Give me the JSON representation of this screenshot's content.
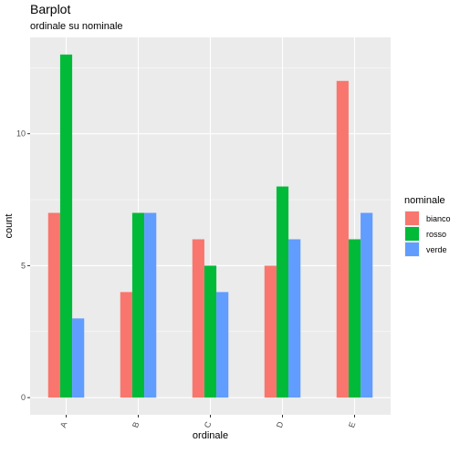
{
  "chart_data": {
    "type": "bar",
    "title": "Barplot",
    "subtitle": "ordinale su nominale",
    "xlabel": "ordinale",
    "ylabel": "count",
    "categories": [
      "A",
      "B",
      "C",
      "D",
      "E"
    ],
    "series": [
      {
        "name": "bianco",
        "color": "#F8766D",
        "values": [
          7,
          4,
          6,
          5,
          12
        ]
      },
      {
        "name": "rosso",
        "color": "#00BA38",
        "values": [
          13,
          7,
          5,
          8,
          6
        ]
      },
      {
        "name": "verde",
        "color": "#619CFF",
        "values": [
          3,
          7,
          4,
          6,
          7
        ]
      }
    ],
    "ylim": [
      -0.65,
      13.65
    ],
    "yticks": [
      0,
      5,
      10
    ],
    "legend_title": "nominale",
    "legend_position": "right",
    "grid": true,
    "panel_background": "#EBEBEB"
  }
}
